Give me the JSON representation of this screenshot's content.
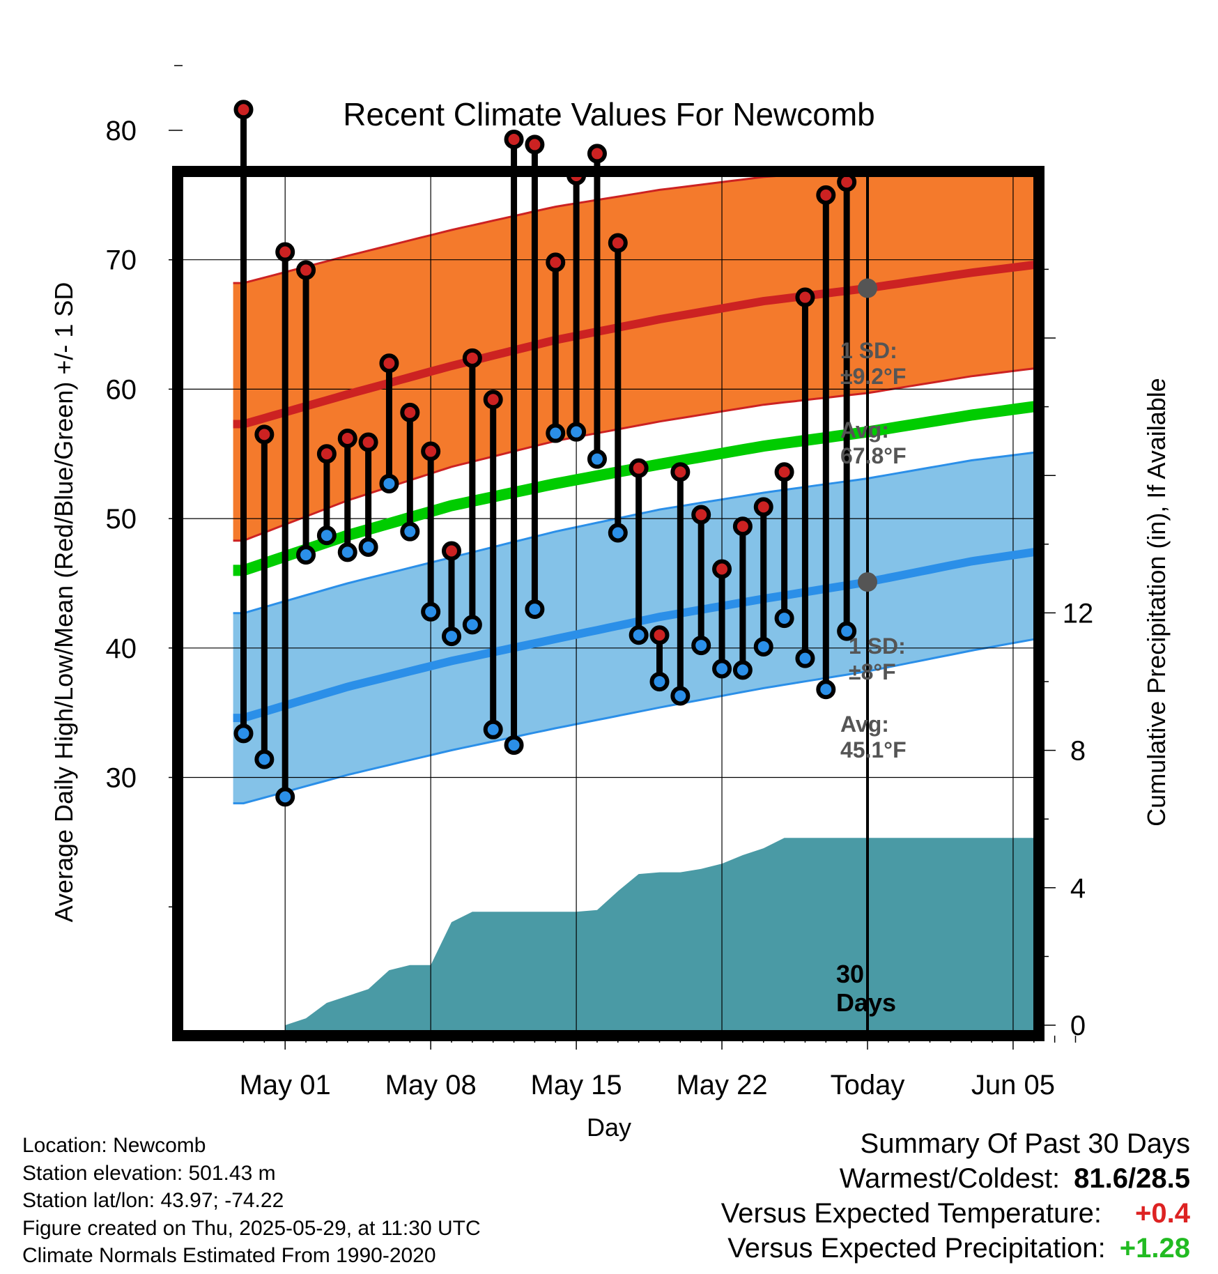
{
  "chart_data": {
    "type": "line",
    "title": "Recent Climate Values For Newcomb",
    "xlabel": "Day",
    "ylabel_left": "Average Daily High/Low/Mean (Red/Blue/Green) +/- 1 SD",
    "ylabel_right": "Cumulative Precipitation (in), If Available",
    "x_ticks": [
      {
        "label": "May 01",
        "day": 2
      },
      {
        "label": "May 08",
        "day": 9
      },
      {
        "label": "May 15",
        "day": 16
      },
      {
        "label": "May 22",
        "day": 23
      },
      {
        "label": "Today",
        "day": 30
      },
      {
        "label": "Jun 05",
        "day": 37
      }
    ],
    "xlim": [
      -0.5,
      40.5
    ],
    "ylim_left": [
      20,
      86
    ],
    "ylim_right": [
      0,
      23.5
    ],
    "y_ticks_left": [
      "30",
      "40",
      "50",
      "60",
      "70",
      "80"
    ],
    "y_ticks_right": [
      "0",
      "4",
      "8",
      "12"
    ],
    "today_day": 30,
    "days_label": [
      "30",
      "Days"
    ],
    "normals": {
      "days": [
        0,
        5,
        10,
        15,
        20,
        25,
        30,
        35,
        40.5
      ],
      "high_avg": [
        57.3,
        59.6,
        61.8,
        63.8,
        65.4,
        66.8,
        67.8,
        69.0,
        70.1
      ],
      "high_sd_upper": [
        68.2,
        70.3,
        72.3,
        74.1,
        75.4,
        76.4,
        77.0,
        77.7,
        78.4
      ],
      "high_sd_lower": [
        48.3,
        51.4,
        54.0,
        56.0,
        57.5,
        58.8,
        59.7,
        61.0,
        62.1
      ],
      "mean": [
        46.0,
        48.7,
        51.0,
        52.7,
        54.2,
        55.6,
        56.7,
        58.0,
        59.2
      ],
      "low_avg": [
        34.6,
        37.0,
        39.0,
        40.7,
        42.4,
        43.8,
        45.1,
        46.7,
        48.0
      ],
      "low_sd_upper": [
        42.7,
        45.0,
        47.0,
        49.0,
        50.7,
        52.0,
        53.1,
        54.5,
        55.6
      ],
      "low_sd_lower": [
        28.0,
        30.2,
        32.1,
        33.8,
        35.4,
        36.9,
        38.2,
        39.8,
        41.4
      ]
    },
    "series": [
      {
        "name": "High",
        "color": "#cc2222",
        "days": [
          0,
          1,
          2,
          3,
          4,
          5,
          6,
          7,
          8,
          9,
          10,
          11,
          12,
          13,
          14,
          15,
          16,
          17,
          18,
          19,
          20,
          21,
          22,
          23,
          24,
          25,
          26,
          27,
          28,
          29
        ],
        "values": [
          81.6,
          56.5,
          70.6,
          69.2,
          55.0,
          56.2,
          55.9,
          62.0,
          58.2,
          55.2,
          47.5,
          62.4,
          59.2,
          79.3,
          78.9,
          69.8,
          76.5,
          78.2,
          71.3,
          53.9,
          41.0,
          53.6,
          50.3,
          46.1,
          49.4,
          50.9,
          53.6,
          67.1,
          75.0,
          76.0
        ]
      },
      {
        "name": "Low",
        "color": "#2b8fe8",
        "days": [
          0,
          1,
          2,
          3,
          4,
          5,
          6,
          7,
          8,
          9,
          10,
          11,
          12,
          13,
          14,
          15,
          16,
          17,
          18,
          19,
          20,
          21,
          22,
          23,
          24,
          25,
          26,
          27,
          28,
          29
        ],
        "values": [
          33.4,
          31.4,
          28.5,
          47.2,
          48.7,
          47.4,
          47.8,
          52.7,
          49.0,
          42.8,
          40.9,
          41.8,
          33.7,
          32.5,
          43.0,
          56.6,
          56.7,
          54.6,
          48.9,
          41.0,
          37.4,
          36.3,
          40.2,
          38.4,
          38.3,
          40.1,
          42.3,
          39.2,
          36.8,
          41.3
        ]
      },
      {
        "name": "Cumulative Precipitation",
        "color": "#4a9aa5",
        "days": [
          2,
          3,
          4,
          5,
          6,
          7,
          8,
          9,
          10,
          11,
          12,
          13,
          14,
          15,
          16,
          17,
          18,
          19,
          20,
          21,
          22,
          23,
          24,
          25,
          26,
          27,
          28,
          29,
          30,
          40.5
        ],
        "values": [
          0.0,
          0.2,
          0.65,
          0.85,
          1.05,
          1.6,
          1.75,
          1.75,
          3.0,
          3.3,
          3.3,
          3.3,
          3.3,
          3.3,
          3.3,
          3.35,
          3.9,
          4.4,
          4.45,
          4.45,
          4.55,
          4.7,
          4.95,
          5.15,
          5.45,
          5.45,
          5.45,
          5.45,
          5.45,
          5.45
        ]
      }
    ],
    "annotations": {
      "high_sd": [
        "1 SD:",
        "±9.2°F"
      ],
      "high_avg": [
        "Avg:",
        "67.8°F"
      ],
      "low_sd": [
        "1 SD:",
        "±8°F"
      ],
      "low_avg": [
        "Avg:",
        "45.1°F"
      ]
    },
    "grid": true
  },
  "info": {
    "location": "Location: Newcomb",
    "elevation": "Station elevation: 501.43 m",
    "latlon": "Station lat/lon: 43.97; -74.22",
    "created": "Figure created on Thu, 2025-05-29, at 11:30 UTC",
    "normals": "Climate Normals Estimated From 1990-2020"
  },
  "summary": {
    "title": "Summary Of Past 30 Days",
    "warmest_label": "Warmest/Coldest:",
    "warmest_value": "81.6/28.5",
    "temp_label": "Versus Expected Temperature:",
    "temp_value": "+0.4",
    "temp_color": "#dd2222",
    "precip_label": "Versus Expected Precipitation:",
    "precip_value": "+1.28",
    "precip_color": "#22bb22"
  },
  "colors": {
    "high_band": "#f47a2c",
    "high_line": "#cc2222",
    "mean_line": "#00cc00",
    "low_band": "#84c2e8",
    "low_line": "#2b8fe8",
    "precip_fill": "#4a9aa5",
    "avg_marker": "#555555"
  }
}
